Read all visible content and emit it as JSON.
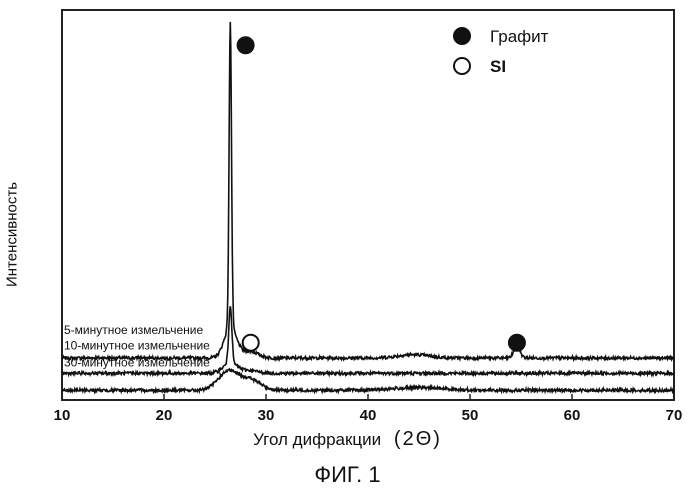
{
  "chart_data": {
    "type": "line",
    "xlabel": "Угол дифракции",
    "xlabel_unit": "(2Θ)",
    "ylabel": "Интенсивность",
    "caption": "ФИГ. 1",
    "xlim": [
      10,
      70
    ],
    "x_ticks": [
      "10",
      "20",
      "30",
      "40",
      "50",
      "60",
      "70"
    ],
    "legend": {
      "position": "top-right",
      "items": [
        {
          "marker": "filled-circle",
          "label": "Графит"
        },
        {
          "marker": "open-circle",
          "label": "SI"
        }
      ]
    },
    "series": [
      {
        "name": "5-минутное измельчение",
        "baseline": 1.0,
        "peaks": [
          {
            "x": 26.5,
            "height": 9.0,
            "width": 0.12
          },
          {
            "x": 26.5,
            "height": 0.9,
            "width": 0.6
          },
          {
            "x": 28.4,
            "height": 0.2,
            "width": 0.8
          },
          {
            "x": 44.5,
            "height": 0.1,
            "width": 1.5
          },
          {
            "x": 54.6,
            "height": 0.35,
            "width": 0.3
          }
        ]
      },
      {
        "name": "10-минутное измельчение",
        "baseline": 0.55,
        "peaks": [
          {
            "x": 26.5,
            "height": 1.7,
            "width": 0.15
          },
          {
            "x": 26.5,
            "height": 0.3,
            "width": 0.7
          },
          {
            "x": 28.4,
            "height": 0.08,
            "width": 0.8
          }
        ]
      },
      {
        "name": "30-минутное измельчение",
        "baseline": 0.05,
        "peaks": [
          {
            "x": 26.3,
            "height": 0.55,
            "width": 1.0
          },
          {
            "x": 28.5,
            "height": 0.3,
            "width": 1.0
          },
          {
            "x": 45.0,
            "height": 0.08,
            "width": 2.5
          }
        ]
      }
    ],
    "markers": [
      {
        "type": "filled-circle",
        "x": 28.0,
        "level": 10.2,
        "label": "Графит"
      },
      {
        "type": "open-circle",
        "x": 28.5,
        "level": 1.45,
        "label": "SI"
      },
      {
        "type": "filled-circle",
        "x": 54.6,
        "level": 1.45,
        "label": "Графит"
      }
    ]
  }
}
